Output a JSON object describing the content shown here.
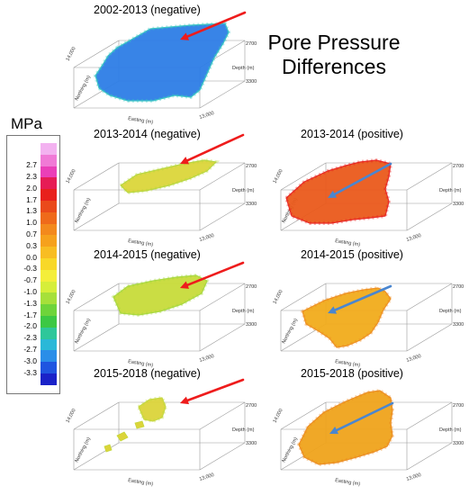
{
  "title_line1": "Pore  Pressure",
  "title_line2": "Differences",
  "legend": {
    "unit": "MPa",
    "entries": [
      {
        "label": "",
        "color": "#f3b2f0"
      },
      {
        "label": "2.7",
        "color": "#f07ad6"
      },
      {
        "label": "2.3",
        "color": "#ea3fb8"
      },
      {
        "label": "2.0",
        "color": "#e61c55"
      },
      {
        "label": "1.7",
        "color": "#e8201c"
      },
      {
        "label": "1.3",
        "color": "#ea4a1a"
      },
      {
        "label": "1.0",
        "color": "#ef6a1a"
      },
      {
        "label": "0.7",
        "color": "#f3891c"
      },
      {
        "label": "0.3",
        "color": "#f6a11c"
      },
      {
        "label": "0.0",
        "color": "#f8bd22"
      },
      {
        "label": "-0.3",
        "color": "#f8d828"
      },
      {
        "label": "-0.7",
        "color": "#f4ee3a"
      },
      {
        "label": "-1.0",
        "color": "#d6ee3a"
      },
      {
        "label": "-1.3",
        "color": "#a6e03a"
      },
      {
        "label": "-1.7",
        "color": "#6ed43a"
      },
      {
        "label": "-2.0",
        "color": "#3cc844"
      },
      {
        "label": "-2.3",
        "color": "#2ec79a"
      },
      {
        "label": "-2.7",
        "color": "#2ab8d8"
      },
      {
        "label": "-3.0",
        "color": "#2a8ee8"
      },
      {
        "label": "-3.3",
        "color": "#1f55e0"
      },
      {
        "label": "",
        "color": "#1a22c8"
      }
    ]
  },
  "axis_labels": {
    "northing": "Northing (m)",
    "easting": "Easting (m)",
    "depth": "Depth (m)",
    "north_tick": "14,000",
    "east_tick": "13,000",
    "depth_top": "2700",
    "depth_bottom": "3300"
  },
  "panels": [
    {
      "title": "2002-2013 (negative)",
      "fill": "#2e7ee6",
      "accent": "#34c3c3",
      "arrow_color": "#ee1c1c"
    },
    {
      "title": "2013-2014 (negative)",
      "fill": "#dcd63a",
      "accent": "#b6d63a",
      "arrow_color": "#ee1c1c"
    },
    {
      "title": "2013-2014 (positive)",
      "fill": "#ea5a1c",
      "accent": "#e8201c",
      "arrow_color": "#4a86d0"
    },
    {
      "title": "2014-2015 (negative)",
      "fill": "#c8dc3a",
      "accent": "#a6d83a",
      "arrow_color": "#ee1c1c"
    },
    {
      "title": "2014-2015 (positive)",
      "fill": "#f2ac1c",
      "accent": "#ee8c1c",
      "arrow_color": "#4a86d0"
    },
    {
      "title": "2015-2018 (negative)",
      "fill": "#dcd43a",
      "accent": "#c4d83a",
      "arrow_color": "#ee1c1c"
    },
    {
      "title": "2015-2018 (positive)",
      "fill": "#f0a41c",
      "accent": "#ec8a1c",
      "arrow_color": "#4a86d0"
    }
  ]
}
